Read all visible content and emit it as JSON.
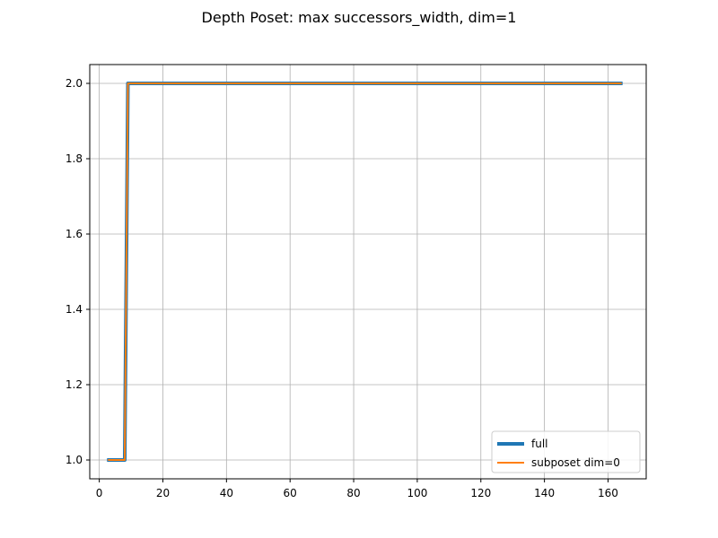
{
  "chart_data": {
    "type": "line",
    "title": "Depth Poset: max successors_width, dim=1",
    "xlabel": "",
    "ylabel": "",
    "xlim": [
      -3,
      172
    ],
    "ylim": [
      0.95,
      2.05
    ],
    "xticks": [
      "0",
      "20",
      "40",
      "60",
      "80",
      "100",
      "120",
      "140",
      "160"
    ],
    "yticks": [
      "1.0",
      "1.2",
      "1.4",
      "1.6",
      "1.8",
      "2.0"
    ],
    "grid": true,
    "legend_position": "lower-right",
    "series": [
      {
        "name": "full",
        "color": "#1f77b4",
        "x": [
          3,
          4,
          5,
          6,
          7,
          8,
          9,
          164
        ],
        "y": [
          1.0,
          1.0,
          1.0,
          1.0,
          1.0,
          1.0,
          2.0,
          2.0
        ]
      },
      {
        "name": "subposet dim=0",
        "color": "#ff7f0e",
        "x": [
          3,
          4,
          5,
          6,
          7,
          8,
          9,
          164
        ],
        "y": [
          1.0,
          1.0,
          1.0,
          1.0,
          1.0,
          1.0,
          2.0,
          2.0
        ]
      }
    ]
  }
}
